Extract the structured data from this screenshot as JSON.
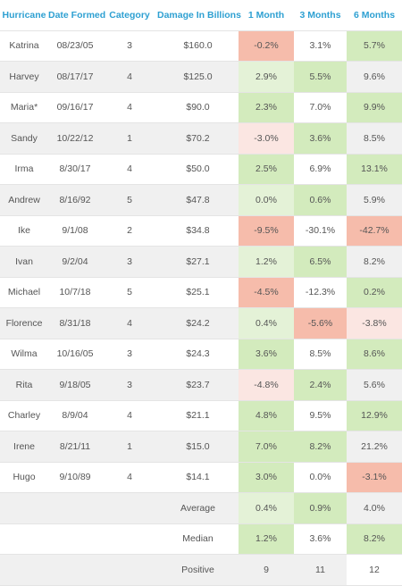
{
  "table": {
    "headers": [
      "Hurricane",
      "Date Formed",
      "Category",
      "Damage In Billions",
      "1 Month",
      "3 Months",
      "6 Months"
    ],
    "rows": [
      {
        "name": "Katrina",
        "date": "08/23/05",
        "category": "3",
        "damage": "$160.0",
        "m1": "-0.2%",
        "m3": "3.1%",
        "m6": "5.7%"
      },
      {
        "name": "Harvey",
        "date": "08/17/17",
        "category": "4",
        "damage": "$125.0",
        "m1": "2.9%",
        "m3": "5.5%",
        "m6": "9.6%"
      },
      {
        "name": "Maria*",
        "date": "09/16/17",
        "category": "4",
        "damage": "$90.0",
        "m1": "2.3%",
        "m3": "7.0%",
        "m6": "9.9%"
      },
      {
        "name": "Sandy",
        "date": "10/22/12",
        "category": "1",
        "damage": "$70.2",
        "m1": "-3.0%",
        "m3": "3.6%",
        "m6": "8.5%"
      },
      {
        "name": "Irma",
        "date": "8/30/17",
        "category": "4",
        "damage": "$50.0",
        "m1": "2.5%",
        "m3": "6.9%",
        "m6": "13.1%"
      },
      {
        "name": "Andrew",
        "date": "8/16/92",
        "category": "5",
        "damage": "$47.8",
        "m1": "0.0%",
        "m3": "0.6%",
        "m6": "5.9%"
      },
      {
        "name": "Ike",
        "date": "9/1/08",
        "category": "2",
        "damage": "$34.8",
        "m1": "-9.5%",
        "m3": "-30.1%",
        "m6": "-42.7%"
      },
      {
        "name": "Ivan",
        "date": "9/2/04",
        "category": "3",
        "damage": "$27.1",
        "m1": "1.2%",
        "m3": "6.5%",
        "m6": "8.2%"
      },
      {
        "name": "Michael",
        "date": "10/7/18",
        "category": "5",
        "damage": "$25.1",
        "m1": "-4.5%",
        "m3": "-12.3%",
        "m6": "0.2%"
      },
      {
        "name": "Florence",
        "date": "8/31/18",
        "category": "4",
        "damage": "$24.2",
        "m1": "0.4%",
        "m3": "-5.6%",
        "m6": "-3.8%"
      },
      {
        "name": "Wilma",
        "date": "10/16/05",
        "category": "3",
        "damage": "$24.3",
        "m1": "3.6%",
        "m3": "8.5%",
        "m6": "8.6%"
      },
      {
        "name": "Rita",
        "date": "9/18/05",
        "category": "3",
        "damage": "$23.7",
        "m1": "-4.8%",
        "m3": "2.4%",
        "m6": "5.6%"
      },
      {
        "name": "Charley",
        "date": "8/9/04",
        "category": "4",
        "damage": "$21.1",
        "m1": "4.8%",
        "m3": "9.5%",
        "m6": "12.9%"
      },
      {
        "name": "Irene",
        "date": "8/21/11",
        "category": "1",
        "damage": "$15.0",
        "m1": "7.0%",
        "m3": "8.2%",
        "m6": "21.2%"
      },
      {
        "name": "Hugo",
        "date": "9/10/89",
        "category": "4",
        "damage": "$14.1",
        "m1": "3.0%",
        "m3": "0.0%",
        "m6": "-3.1%"
      }
    ],
    "summary": [
      {
        "label": "Average",
        "m1": "0.4%",
        "m3": "0.9%",
        "m6": "4.0%"
      },
      {
        "label": "Median",
        "m1": "1.2%",
        "m3": "3.6%",
        "m6": "8.2%"
      },
      {
        "label": "Positive",
        "m1": "9",
        "m3": "11",
        "m6": "12"
      }
    ]
  },
  "colors": {
    "header_text": "#2ea0d2",
    "row_stripe": "#f0f0f0",
    "positive_light": "#e4f2d7",
    "positive_strong": "#d3ebbd",
    "negative_light": "#fbe6e2",
    "negative_strong": "#f6bcab"
  }
}
